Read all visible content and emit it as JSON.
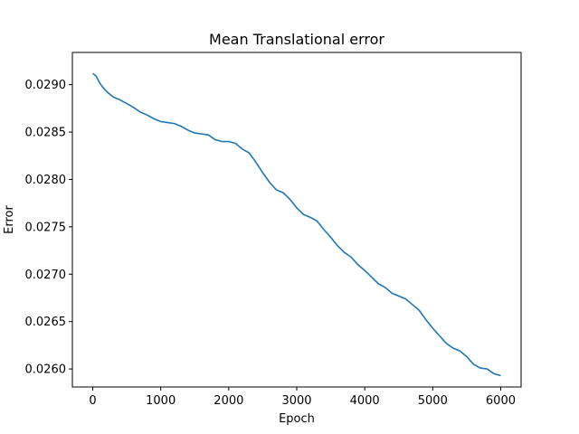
{
  "chart_data": {
    "type": "line",
    "title": "Mean Translational error",
    "xlabel": "Epoch",
    "ylabel": "Error",
    "xlim": [
      -300,
      6300
    ],
    "ylim": [
      0.02581,
      0.02934
    ],
    "xticks": [
      0,
      1000,
      2000,
      3000,
      4000,
      5000,
      6000
    ],
    "xtick_labels": [
      "0",
      "1000",
      "2000",
      "3000",
      "4000",
      "5000",
      "6000"
    ],
    "yticks": [
      0.026,
      0.0265,
      0.027,
      0.0275,
      0.028,
      0.0285,
      0.029
    ],
    "ytick_labels": [
      "0.0260",
      "0.0265",
      "0.0270",
      "0.0275",
      "0.0280",
      "0.0285",
      "0.0290"
    ],
    "grid": false,
    "series": [
      {
        "color": "#1f77b4",
        "x": [
          0,
          50,
          100,
          150,
          200,
          300,
          400,
          500,
          600,
          700,
          800,
          900,
          1000,
          1100,
          1200,
          1300,
          1400,
          1500,
          1600,
          1700,
          1800,
          1900,
          2000,
          2100,
          2200,
          2300,
          2400,
          2500,
          2600,
          2700,
          2800,
          2900,
          3000,
          3100,
          3200,
          3300,
          3400,
          3500,
          3600,
          3700,
          3800,
          3900,
          4000,
          4100,
          4200,
          4300,
          4400,
          4500,
          4600,
          4700,
          4800,
          4900,
          5000,
          5100,
          5200,
          5300,
          5400,
          5500,
          5600,
          5700,
          5800,
          5900,
          6000
        ],
        "values": [
          0.02912,
          0.02909,
          0.02902,
          0.02897,
          0.02893,
          0.02887,
          0.02884,
          0.0288,
          0.02876,
          0.02871,
          0.02868,
          0.02864,
          0.02861,
          0.0286,
          0.02859,
          0.02856,
          0.02852,
          0.02849,
          0.02848,
          0.02847,
          0.02842,
          0.0284,
          0.0284,
          0.02838,
          0.02832,
          0.02828,
          0.02818,
          0.02807,
          0.02797,
          0.02789,
          0.02786,
          0.02779,
          0.0277,
          0.02763,
          0.0276,
          0.02756,
          0.02747,
          0.02739,
          0.0273,
          0.02723,
          0.02718,
          0.0271,
          0.02704,
          0.02697,
          0.0269,
          0.02686,
          0.0268,
          0.02677,
          0.02674,
          0.02668,
          0.02662,
          0.02652,
          0.02643,
          0.02635,
          0.02627,
          0.02622,
          0.02619,
          0.02613,
          0.02605,
          0.02601,
          0.026,
          0.02595,
          0.02593
        ]
      }
    ]
  }
}
